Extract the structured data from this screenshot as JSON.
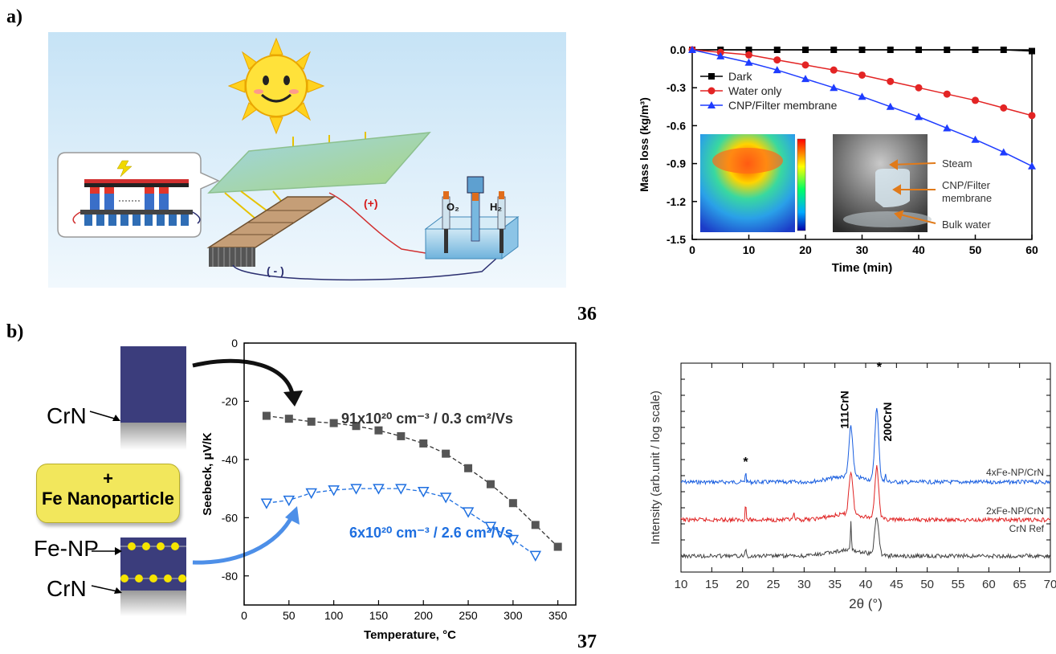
{
  "labels": {
    "panel_a": "a)",
    "panel_b": "b)",
    "ref_36": "36",
    "ref_37": "37"
  },
  "diagram_a": {
    "o2": "O₂",
    "h2": "H₂",
    "plus": "(+)",
    "minus": "( - )"
  },
  "diagram_b": {
    "crn_top": "CrN",
    "plus_sign": "+",
    "fe_np_box": "Fe Nanoparticle",
    "fe_np": "Fe-NP",
    "crn_bottom": "CrN"
  },
  "colors": {
    "dark_series": "#333333",
    "blue_series": "#1e6fe0",
    "red": "#e32424",
    "sky": "#cfe8f8",
    "crn_layer": "#3b3d7c",
    "np_yellow": "#f5e400"
  },
  "chart_data": [
    {
      "type": "line",
      "xlabel": "Time (min)",
      "ylabel": "Mass loss (kg/m³)",
      "xlim": [
        0,
        60
      ],
      "ylim": [
        -1.5,
        0.0
      ],
      "xticks": [
        "0",
        "10",
        "20",
        "30",
        "40",
        "50",
        "60"
      ],
      "yticks": [
        "0.0",
        "-0.3",
        "-0.6",
        "-0.9",
        "-1.2",
        "-1.5"
      ],
      "legend_position": "left",
      "series": [
        {
          "name": "Dark",
          "x": [
            0,
            5,
            10,
            15,
            20,
            25,
            30,
            35,
            40,
            45,
            50,
            55,
            60
          ],
          "y": [
            0,
            0,
            0,
            0,
            0,
            0,
            0,
            0,
            0,
            0,
            0,
            0,
            -0.01
          ]
        },
        {
          "name": "Water only",
          "x": [
            0,
            5,
            10,
            15,
            20,
            25,
            30,
            35,
            40,
            45,
            50,
            55,
            60
          ],
          "y": [
            0,
            -0.02,
            -0.04,
            -0.08,
            -0.12,
            -0.16,
            -0.2,
            -0.25,
            -0.3,
            -0.35,
            -0.4,
            -0.46,
            -0.52
          ]
        },
        {
          "name": "CNP/Filter membrane",
          "x": [
            0,
            5,
            10,
            15,
            20,
            25,
            30,
            35,
            40,
            45,
            50,
            55,
            60
          ],
          "y": [
            0,
            -0.05,
            -0.1,
            -0.16,
            -0.23,
            -0.3,
            -0.37,
            -0.45,
            -0.53,
            -0.62,
            -0.71,
            -0.81,
            -0.92
          ]
        }
      ],
      "inset_annotations": [
        "Steam",
        "CNP/Filter membrane",
        "Bulk water"
      ]
    },
    {
      "type": "line",
      "xlabel": "Temperature, °C",
      "ylabel": "Seebeck, μV/K",
      "xlim": [
        0,
        370
      ],
      "ylim": [
        -90,
        0
      ],
      "xticks": [
        "0",
        "50",
        "100",
        "150",
        "200",
        "250",
        "300",
        "350"
      ],
      "yticks": [
        "0",
        "-20",
        "-40",
        "-60",
        "-80"
      ],
      "annotations": [
        "91x10²⁰ cm⁻³ / 0.3 cm²/Vs",
        "6x10²⁰ cm⁻³ / 2.6 cm²/Vs"
      ],
      "series": [
        {
          "x": [
            25,
            50,
            75,
            100,
            125,
            150,
            175,
            200,
            225,
            250,
            275,
            300,
            325,
            350
          ],
          "y": [
            -25,
            -26,
            -27,
            -27.5,
            -28.5,
            -30,
            -32,
            -34.5,
            -38,
            -43,
            -48.5,
            -55,
            -62.5,
            -70
          ]
        },
        {
          "x": [
            25,
            50,
            75,
            100,
            125,
            150,
            175,
            200,
            225,
            250,
            275,
            300,
            325
          ],
          "y": [
            -55,
            -54,
            -51.5,
            -50.5,
            -50,
            -50,
            -50,
            -51,
            -53,
            -58,
            -63,
            -67.5,
            -73
          ]
        }
      ]
    },
    {
      "type": "line",
      "xlabel": "2θ (°)",
      "ylabel": "Intensity (arb.unit / log scale)",
      "xlim": [
        10,
        70
      ],
      "xticks": [
        "10",
        "15",
        "20",
        "25",
        "30",
        "35",
        "40",
        "45",
        "50",
        "55",
        "60",
        "65",
        "70"
      ],
      "peak_labels": [
        "*",
        "111CrN",
        "*",
        "200CrN"
      ],
      "series": [
        {
          "name": "4xFe-NP/CrN",
          "offset": 2,
          "peaks": [
            [
              20.5,
              0.45
            ],
            [
              37.6,
              2.2
            ],
            [
              41.8,
              3.2
            ],
            [
              43.2,
              0.4
            ]
          ]
        },
        {
          "name": "2xFe-NP/CrN",
          "offset": 1,
          "peaks": [
            [
              20.5,
              0.7
            ],
            [
              28.3,
              0.3
            ],
            [
              37.6,
              1.9
            ],
            [
              41.8,
              2.3
            ]
          ]
        },
        {
          "name": "CrN Ref",
          "offset": 0,
          "peaks": [
            [
              20.5,
              0.4
            ],
            [
              37.6,
              1.3
            ],
            [
              41.8,
              1.7
            ]
          ]
        }
      ]
    }
  ]
}
